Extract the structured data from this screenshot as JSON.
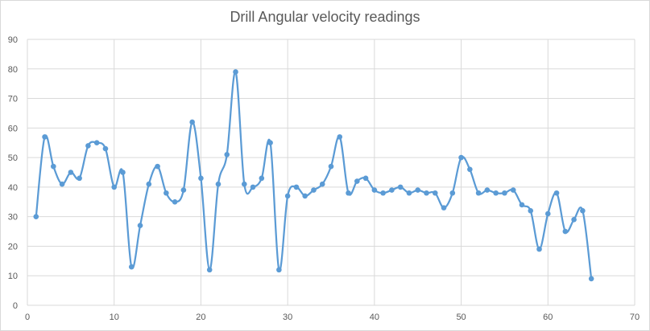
{
  "chart_data": {
    "type": "scatter",
    "title": "Drill Angular velocity readings",
    "xlabel": "",
    "ylabel": "",
    "xlim": [
      0,
      70
    ],
    "ylim": [
      0,
      90
    ],
    "x_ticks": [
      0,
      10,
      20,
      30,
      40,
      50,
      60,
      70
    ],
    "y_ticks": [
      0,
      10,
      20,
      30,
      40,
      50,
      60,
      70,
      80,
      90
    ],
    "grid": true,
    "legend": "none",
    "smooth_line": true,
    "marker": "circle",
    "series": [
      {
        "color": "#5b9bd5",
        "x": [
          1,
          2,
          3,
          4,
          5,
          6,
          7,
          8,
          9,
          10,
          11,
          12,
          13,
          14,
          15,
          16,
          17,
          18,
          19,
          20,
          21,
          22,
          23,
          24,
          25,
          26,
          27,
          28,
          29,
          30,
          31,
          32,
          33,
          34,
          35,
          36,
          37,
          38,
          39,
          40,
          41,
          42,
          43,
          44,
          45,
          46,
          47,
          48,
          49,
          50,
          51,
          52,
          53,
          54,
          55,
          56,
          57,
          58,
          59,
          60,
          61,
          62,
          63,
          64,
          65
        ],
        "y": [
          30,
          57,
          47,
          41,
          45,
          43,
          54,
          55,
          53,
          40,
          45,
          13,
          27,
          41,
          47,
          38,
          35,
          39,
          62,
          43,
          12,
          41,
          51,
          79,
          41,
          40,
          43,
          55,
          12,
          37,
          40,
          37,
          39,
          41,
          47,
          57,
          38,
          42,
          43,
          39,
          38,
          39,
          40,
          38,
          39,
          38,
          38,
          33,
          38,
          50,
          46,
          38,
          39,
          38,
          38,
          39,
          34,
          32,
          19,
          31,
          38,
          25,
          29,
          32,
          9
        ]
      }
    ]
  }
}
